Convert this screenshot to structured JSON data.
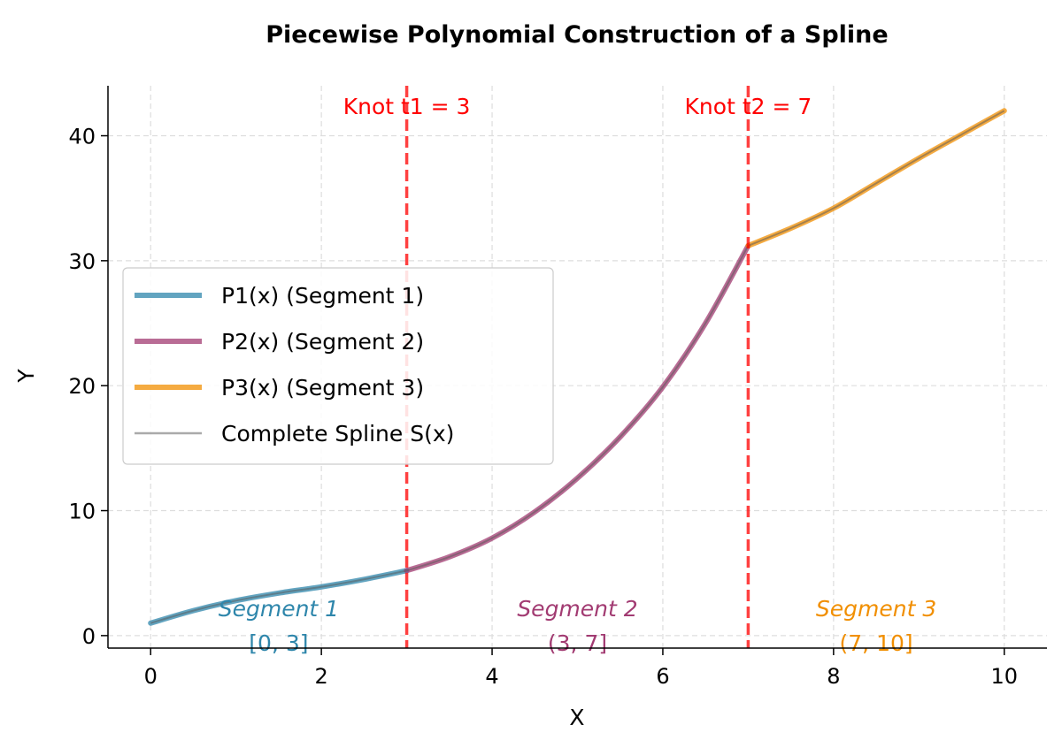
{
  "chart_data": {
    "type": "line",
    "title": "Piecewise Polynomial Construction of a Spline",
    "xlabel": "X",
    "ylabel": "Y",
    "xlim": [
      -0.5,
      10.5
    ],
    "ylim": [
      -1,
      44
    ],
    "xticks": [
      0,
      2,
      4,
      6,
      8,
      10
    ],
    "yticks": [
      0,
      10,
      20,
      30,
      40
    ],
    "grid": true,
    "legend_position": "center-left",
    "series": [
      {
        "name": "P_1(x) (Segment 1)",
        "legend_label": "P1(x) (Segment 1)",
        "color": "#2E86AB",
        "x": [
          0,
          0.5,
          1,
          1.5,
          2,
          2.5,
          3
        ],
        "y": [
          1.0,
          2.0,
          2.8,
          3.4,
          3.9,
          4.5,
          5.2
        ]
      },
      {
        "name": "P_2(x) (Segment 2)",
        "legend_label": "P2(x) (Segment 2)",
        "color": "#A23B72",
        "x": [
          3,
          3.5,
          4,
          4.5,
          5,
          5.5,
          6,
          6.5,
          7
        ],
        "y": [
          5.2,
          6.3,
          7.8,
          9.9,
          12.6,
          15.9,
          19.9,
          25.0,
          31.2
        ]
      },
      {
        "name": "P_3(x) (Segment 3)",
        "legend_label": "P3(x) (Segment 3)",
        "color": "#F18F01",
        "x": [
          7,
          7.5,
          8,
          8.5,
          9,
          9.5,
          10
        ],
        "y": [
          31.2,
          32.6,
          34.2,
          36.2,
          38.2,
          40.1,
          42.0
        ]
      },
      {
        "name": "Complete Spline S(x)",
        "legend_label": "Complete Spline S(x)",
        "color": "#555555"
      }
    ],
    "knots": [
      {
        "x": 3,
        "label": "Knot t1 = 3",
        "color": "#FF0000"
      },
      {
        "x": 7,
        "label": "Knot t2 = 7",
        "color": "#FF0000"
      }
    ],
    "annotations": [
      {
        "text": "Segment 1",
        "interval": "[0, 3]",
        "color": "#2E86AB"
      },
      {
        "text": "Segment 2",
        "interval": "(3, 7]",
        "color": "#A23B72"
      },
      {
        "text": "Segment 3",
        "interval": "(7, 10]",
        "color": "#F18F01"
      }
    ]
  }
}
